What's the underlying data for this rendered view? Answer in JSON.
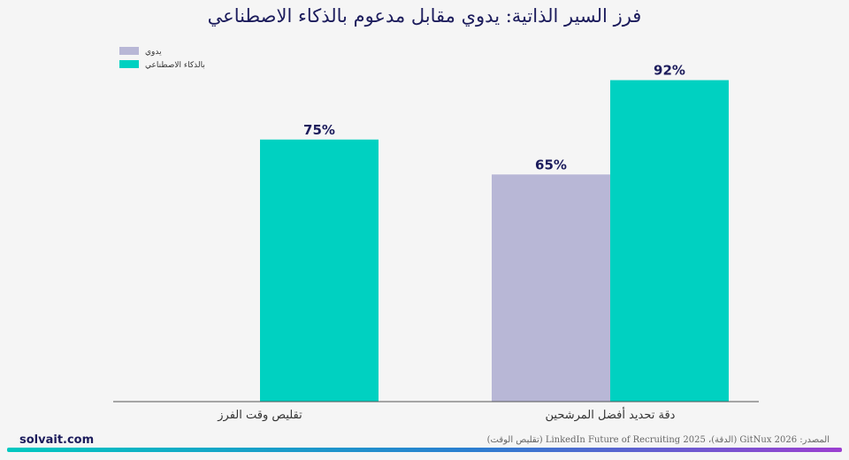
{
  "title": "فرز السير الذاتية: يدوي مقابل مدعوم بالذكاء الاصطناعي",
  "brand": "solvait.com",
  "source": "المصدر: GitNux 2026 (الدقة)، LinkedIn Future of Recruiting 2025 (تقليص الوقت)",
  "colors": {
    "manual": "#b8b7d6",
    "ai": "#00d1c1",
    "title": "#1c1c5c"
  },
  "chart_data": {
    "type": "bar",
    "categories": [
      "دقة تحديد أفضل المرشحين",
      "تقليص وقت الفرز"
    ],
    "series": [
      {
        "name": "يدوي",
        "values": [
          65,
          null
        ],
        "labels": [
          "65%",
          ""
        ]
      },
      {
        "name": "بالذكاء الاصطناعي",
        "values": [
          92,
          75
        ],
        "labels": [
          "92%",
          "75%"
        ]
      }
    ],
    "ylim": [
      0,
      100
    ],
    "grid": false,
    "legend": "top-left"
  }
}
